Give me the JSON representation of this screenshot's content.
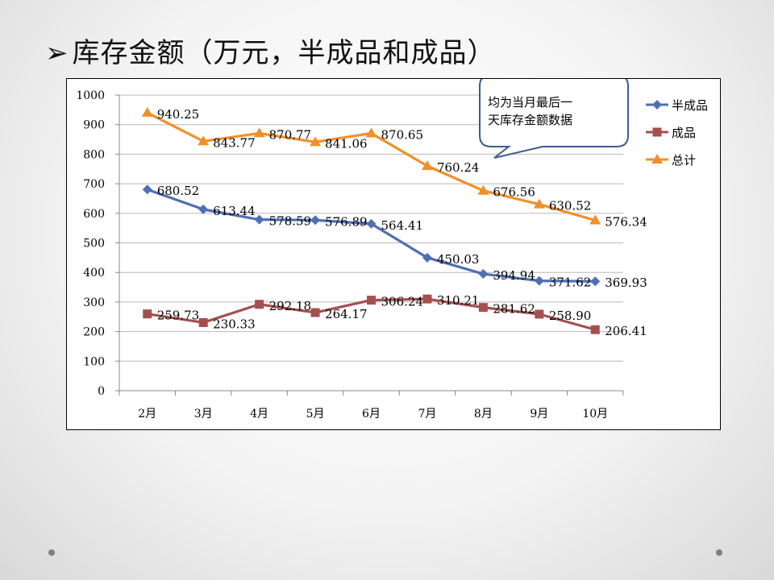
{
  "slide": {
    "title_arrow": "➢",
    "title": "库存金额（万元，半成品和成品）"
  },
  "callout": {
    "line1": "均为当月最后一",
    "line2": "天库存金额数据"
  },
  "colors": {
    "semi": "#4f6fb3",
    "finished": "#a54f4f",
    "total": "#f0902a"
  },
  "chart_data": {
    "type": "line",
    "title": "库存金额（万元，半成品和成品）",
    "categories": [
      "2月",
      "3月",
      "4月",
      "5月",
      "6月",
      "7月",
      "8月",
      "9月",
      "10月"
    ],
    "ylim": [
      0,
      1000
    ],
    "yticks": [
      0,
      100,
      200,
      300,
      400,
      500,
      600,
      700,
      800,
      900,
      1000
    ],
    "grid": true,
    "legend_position": "right",
    "series": [
      {
        "name": "半成品",
        "marker": "diamond",
        "color": "#4f6fb3",
        "values": [
          680.52,
          613.44,
          578.59,
          576.89,
          564.41,
          450.03,
          394.94,
          371.62,
          369.93
        ],
        "labels": [
          "680.52",
          "613.44",
          "578.59",
          "576.89",
          "564.41",
          "450.03",
          "394.94",
          "371.62",
          "369.93"
        ]
      },
      {
        "name": "成品",
        "marker": "square",
        "color": "#a54f4f",
        "values": [
          259.73,
          230.33,
          292.18,
          264.17,
          306.24,
          310.21,
          281.62,
          258.9,
          206.41
        ],
        "labels": [
          "259.73",
          "230.33",
          "292.18",
          "264.17",
          "306.24",
          "310.21",
          "281.62",
          "258.90",
          "206.41"
        ]
      },
      {
        "name": "总计",
        "marker": "triangle",
        "color": "#f0902a",
        "values": [
          940.25,
          843.77,
          870.77,
          841.06,
          870.65,
          760.24,
          676.56,
          630.52,
          576.34
        ],
        "labels": [
          "940.25",
          "843.77",
          "870.77",
          "841.06",
          "870.65",
          "760.24",
          "676.56",
          "630.52",
          "576.34"
        ]
      }
    ]
  }
}
